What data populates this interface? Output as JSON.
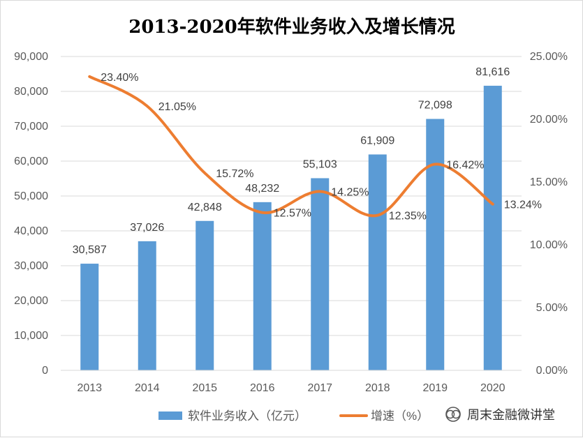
{
  "chart_data": {
    "type": "bar+line",
    "title": "2013-2020年软件业务收入及增长情况",
    "categories": [
      "2013",
      "2014",
      "2015",
      "2016",
      "2017",
      "2018",
      "2019",
      "2020"
    ],
    "series": [
      {
        "name": "软件业务收入（亿元）",
        "type": "bar",
        "axis": "left",
        "values": [
          30587,
          37026,
          42848,
          48232,
          55103,
          61909,
          72098,
          81616
        ],
        "labels": [
          "30,587",
          "37,026",
          "42,848",
          "48,232",
          "55,103",
          "61,909",
          "72,098",
          "81,616"
        ],
        "color": "#5b9bd5"
      },
      {
        "name": "增速（%）",
        "type": "line",
        "axis": "right",
        "values": [
          23.4,
          21.05,
          15.72,
          12.57,
          14.25,
          12.35,
          16.42,
          13.24
        ],
        "labels": [
          "23.40%",
          "21.05%",
          "15.72%",
          "12.57%",
          "14.25%",
          "12.35%",
          "16.42%",
          "13.24%"
        ],
        "color": "#ed7d31"
      }
    ],
    "y_left": {
      "ylim": [
        0,
        90000
      ],
      "ticks": [
        0,
        10000,
        20000,
        30000,
        40000,
        50000,
        60000,
        70000,
        80000,
        90000
      ],
      "tick_labels": [
        "0",
        "10,000",
        "20,000",
        "30,000",
        "40,000",
        "50,000",
        "60,000",
        "70,000",
        "80,000",
        "90,000"
      ]
    },
    "y_right": {
      "ylim": [
        0,
        25
      ],
      "ticks": [
        0,
        5,
        10,
        15,
        20,
        25
      ],
      "tick_labels": [
        "0.00%",
        "5.00%",
        "10.00%",
        "15.00%",
        "20.00%",
        "25.00%"
      ]
    },
    "grid": true,
    "legend_position": "bottom"
  },
  "watermark": {
    "text": "周末金融微讲堂",
    "icon": "wechat-icon"
  }
}
